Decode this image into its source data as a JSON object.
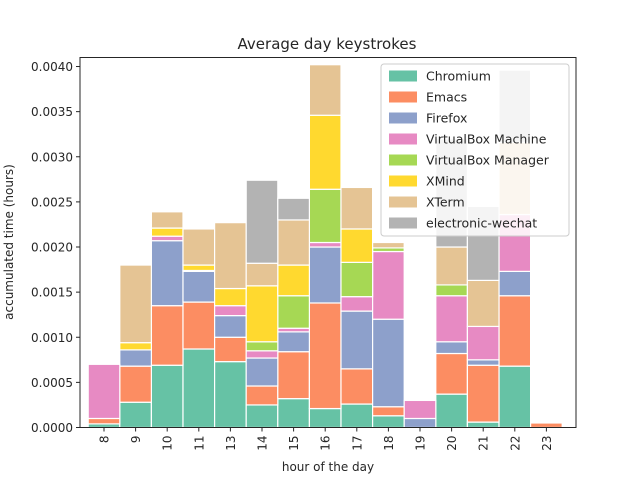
{
  "chart_data": {
    "type": "bar",
    "stacked": true,
    "title": "Average day keystrokes",
    "xlabel": "hour of the day",
    "ylabel": "accumulated time (hours)",
    "ylim": [
      0,
      0.0041
    ],
    "yticks": [
      "0.0000",
      "0.0005",
      "0.0010",
      "0.0015",
      "0.0020",
      "0.0025",
      "0.0030",
      "0.0035",
      "0.0040"
    ],
    "ytick_values": [
      0,
      0.0005,
      0.001,
      0.0015,
      0.002,
      0.0025,
      0.003,
      0.0035,
      0.004
    ],
    "categories": [
      "8",
      "9",
      "10",
      "11",
      "13",
      "14",
      "15",
      "16",
      "17",
      "18",
      "19",
      "20",
      "21",
      "22",
      "23"
    ],
    "legend_position": "upper right",
    "series": [
      {
        "name": "Chromium",
        "color": "#66c2a5",
        "values": [
          4e-05,
          0.00028,
          0.00069,
          0.00087,
          0.00073,
          0.00025,
          0.00032,
          0.00021,
          0.00026,
          0.00013,
          0,
          0.00037,
          6e-05,
          0.00068,
          0
        ]
      },
      {
        "name": "Emacs",
        "color": "#fc8d62",
        "values": [
          6e-05,
          0.0004,
          0.00066,
          0.00052,
          0.00027,
          0.00021,
          0.00052,
          0.00117,
          0.00039,
          0.0001,
          0,
          0.00045,
          0.00063,
          0.00078,
          5e-05
        ]
      },
      {
        "name": "Firefox",
        "color": "#8da0cb",
        "values": [
          0,
          0.00018,
          0.00072,
          0.00034,
          0.00024,
          0.00031,
          0.00022,
          0.00062,
          0.00064,
          0.00097,
          0.0001,
          0.00013,
          6e-05,
          0.00027,
          0
        ]
      },
      {
        "name": "VirtualBox Machine",
        "color": "#e78ac3",
        "values": [
          0.0006,
          0,
          5e-05,
          1e-05,
          0.00011,
          8e-05,
          4e-05,
          5e-05,
          0.00016,
          0.00075,
          0.0002,
          0.00051,
          0.00037,
          0.00063,
          0
        ]
      },
      {
        "name": "VirtualBox Manager",
        "color": "#a6d854",
        "values": [
          0,
          0,
          0,
          0,
          0,
          0.0001,
          0.00036,
          0.00059,
          0.00038,
          4e-05,
          0,
          0.00012,
          0,
          0,
          0
        ]
      },
      {
        "name": "XMind",
        "color": "#ffd92f",
        "values": [
          0,
          8e-05,
          9e-05,
          6e-05,
          0.00019,
          0.00062,
          0.00034,
          0.00082,
          0.00037,
          0,
          0,
          0,
          0,
          0,
          0
        ]
      },
      {
        "name": "XTerm",
        "color": "#e5c494",
        "values": [
          0,
          0.00086,
          0.00018,
          0.0004,
          0.00073,
          0.00025,
          0.0005,
          0.00056,
          0.00046,
          6e-05,
          0,
          0.00042,
          0.00051,
          0.0008,
          0
        ]
      },
      {
        "name": "electronic-wechat",
        "color": "#b3b3b3",
        "values": [
          0,
          0,
          0,
          0,
          0,
          0.00092,
          0.00024,
          0,
          0,
          0,
          0,
          0.0012,
          0.00082,
          0.0008,
          0
        ]
      }
    ]
  }
}
